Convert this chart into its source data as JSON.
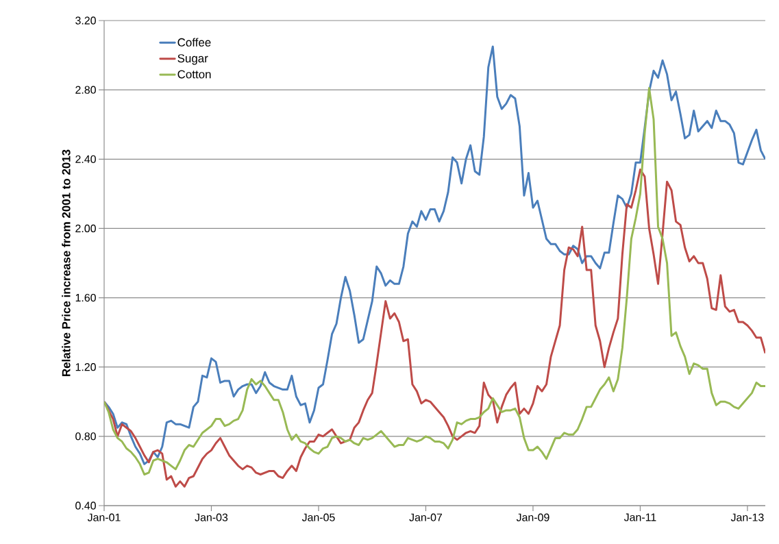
{
  "chart_data": {
    "type": "line",
    "ylabel": "Relative Price increase from 2001 to 2013",
    "x": [
      "2001-01",
      "2001-02",
      "2001-03",
      "2001-04",
      "2001-05",
      "2001-06",
      "2001-07",
      "2001-08",
      "2001-09",
      "2001-10",
      "2001-11",
      "2001-12",
      "2002-01",
      "2002-02",
      "2002-03",
      "2002-04",
      "2002-05",
      "2002-06",
      "2002-07",
      "2002-08",
      "2002-09",
      "2002-10",
      "2002-11",
      "2002-12",
      "2003-01",
      "2003-02",
      "2003-03",
      "2003-04",
      "2003-05",
      "2003-06",
      "2003-07",
      "2003-08",
      "2003-09",
      "2003-10",
      "2003-11",
      "2003-12",
      "2004-01",
      "2004-02",
      "2004-03",
      "2004-04",
      "2004-05",
      "2004-06",
      "2004-07",
      "2004-08",
      "2004-09",
      "2004-10",
      "2004-11",
      "2004-12",
      "2005-01",
      "2005-02",
      "2005-03",
      "2005-04",
      "2005-05",
      "2005-06",
      "2005-07",
      "2005-08",
      "2005-09",
      "2005-10",
      "2005-11",
      "2005-12",
      "2006-01",
      "2006-02",
      "2006-03",
      "2006-04",
      "2006-05",
      "2006-06",
      "2006-07",
      "2006-08",
      "2006-09",
      "2006-10",
      "2006-11",
      "2006-12",
      "2007-01",
      "2007-02",
      "2007-03",
      "2007-04",
      "2007-05",
      "2007-06",
      "2007-07",
      "2007-08",
      "2007-09",
      "2007-10",
      "2007-11",
      "2007-12",
      "2008-01",
      "2008-02",
      "2008-03",
      "2008-04",
      "2008-05",
      "2008-06",
      "2008-07",
      "2008-08",
      "2008-09",
      "2008-10",
      "2008-11",
      "2008-12",
      "2009-01",
      "2009-02",
      "2009-03",
      "2009-04",
      "2009-05",
      "2009-06",
      "2009-07",
      "2009-08",
      "2009-09",
      "2009-10",
      "2009-11",
      "2009-12",
      "2010-01",
      "2010-02",
      "2010-03",
      "2010-04",
      "2010-05",
      "2010-06",
      "2010-07",
      "2010-08",
      "2010-09",
      "2010-10",
      "2010-11",
      "2010-12",
      "2011-01",
      "2011-02",
      "2011-03",
      "2011-04",
      "2011-05",
      "2011-06",
      "2011-07",
      "2011-08",
      "2011-09",
      "2011-10",
      "2011-11",
      "2011-12",
      "2012-01",
      "2012-02",
      "2012-03",
      "2012-04",
      "2012-05",
      "2012-06",
      "2012-07",
      "2012-08",
      "2012-09",
      "2012-10",
      "2012-11",
      "2012-12",
      "2013-01",
      "2013-02",
      "2013-03",
      "2013-04",
      "2013-05"
    ],
    "series": [
      {
        "name": "Coffee",
        "color": "#4a7ebb",
        "values": [
          1.0,
          0.97,
          0.93,
          0.85,
          0.88,
          0.87,
          0.8,
          0.74,
          0.7,
          0.64,
          0.66,
          0.71,
          0.68,
          0.74,
          0.88,
          0.89,
          0.87,
          0.87,
          0.86,
          0.85,
          0.97,
          1.0,
          1.15,
          1.14,
          1.25,
          1.23,
          1.11,
          1.12,
          1.12,
          1.03,
          1.07,
          1.09,
          1.1,
          1.1,
          1.05,
          1.09,
          1.17,
          1.11,
          1.09,
          1.08,
          1.07,
          1.07,
          1.15,
          1.03,
          0.98,
          0.99,
          0.88,
          0.95,
          1.08,
          1.1,
          1.24,
          1.39,
          1.45,
          1.6,
          1.72,
          1.64,
          1.5,
          1.34,
          1.36,
          1.47,
          1.58,
          1.78,
          1.74,
          1.67,
          1.7,
          1.68,
          1.68,
          1.78,
          1.97,
          2.04,
          2.01,
          2.1,
          2.05,
          2.11,
          2.11,
          2.04,
          2.1,
          2.21,
          2.41,
          2.38,
          2.26,
          2.4,
          2.48,
          2.33,
          2.31,
          2.53,
          2.93,
          3.05,
          2.76,
          2.69,
          2.72,
          2.77,
          2.75,
          2.59,
          2.19,
          2.32,
          2.12,
          2.16,
          2.05,
          1.94,
          1.91,
          1.91,
          1.87,
          1.85,
          1.85,
          1.9,
          1.88,
          1.8,
          1.84,
          1.84,
          1.8,
          1.77,
          1.86,
          1.86,
          2.03,
          2.19,
          2.17,
          2.12,
          2.2,
          2.38,
          2.38,
          2.58,
          2.79,
          2.91,
          2.87,
          2.97,
          2.89,
          2.74,
          2.79,
          2.66,
          2.52,
          2.54,
          2.68,
          2.56,
          2.59,
          2.62,
          2.58,
          2.68,
          2.62,
          2.62,
          2.6,
          2.55,
          2.38,
          2.37,
          2.44,
          2.51,
          2.57,
          2.45,
          2.4
        ]
      },
      {
        "name": "Sugar",
        "color": "#be4b48",
        "values": [
          1.0,
          0.95,
          0.9,
          0.8,
          0.87,
          0.85,
          0.83,
          0.79,
          0.74,
          0.69,
          0.65,
          0.71,
          0.72,
          0.7,
          0.55,
          0.57,
          0.51,
          0.54,
          0.51,
          0.56,
          0.57,
          0.62,
          0.67,
          0.7,
          0.72,
          0.76,
          0.79,
          0.74,
          0.69,
          0.66,
          0.63,
          0.61,
          0.63,
          0.62,
          0.59,
          0.58,
          0.59,
          0.6,
          0.6,
          0.57,
          0.56,
          0.6,
          0.63,
          0.6,
          0.68,
          0.73,
          0.77,
          0.77,
          0.81,
          0.8,
          0.82,
          0.84,
          0.8,
          0.76,
          0.77,
          0.78,
          0.85,
          0.88,
          0.95,
          1.01,
          1.05,
          1.22,
          1.4,
          1.58,
          1.48,
          1.51,
          1.46,
          1.35,
          1.36,
          1.1,
          1.06,
          0.99,
          1.01,
          1.0,
          0.97,
          0.94,
          0.91,
          0.86,
          0.8,
          0.78,
          0.8,
          0.82,
          0.83,
          0.82,
          0.86,
          1.11,
          1.04,
          1.01,
          0.88,
          0.97,
          1.04,
          1.08,
          1.11,
          0.93,
          0.96,
          0.93,
          0.99,
          1.09,
          1.06,
          1.1,
          1.26,
          1.35,
          1.44,
          1.76,
          1.89,
          1.88,
          1.84,
          2.01,
          1.76,
          1.76,
          1.44,
          1.35,
          1.2,
          1.31,
          1.4,
          1.48,
          1.85,
          2.14,
          2.12,
          2.22,
          2.34,
          2.3,
          2.0,
          1.85,
          1.68,
          1.97,
          2.27,
          2.22,
          2.04,
          2.02,
          1.89,
          1.81,
          1.84,
          1.8,
          1.8,
          1.71,
          1.54,
          1.53,
          1.73,
          1.55,
          1.52,
          1.53,
          1.46,
          1.46,
          1.44,
          1.41,
          1.37,
          1.37,
          1.28
        ]
      },
      {
        "name": "Cotton",
        "color": "#98b954",
        "values": [
          1.0,
          0.94,
          0.84,
          0.79,
          0.77,
          0.73,
          0.71,
          0.68,
          0.64,
          0.58,
          0.59,
          0.66,
          0.67,
          0.66,
          0.65,
          0.63,
          0.61,
          0.66,
          0.72,
          0.75,
          0.74,
          0.78,
          0.82,
          0.84,
          0.86,
          0.9,
          0.9,
          0.86,
          0.87,
          0.89,
          0.9,
          0.95,
          1.07,
          1.13,
          1.1,
          1.12,
          1.09,
          1.05,
          1.01,
          1.01,
          0.94,
          0.84,
          0.78,
          0.81,
          0.77,
          0.76,
          0.73,
          0.71,
          0.7,
          0.73,
          0.74,
          0.79,
          0.8,
          0.79,
          0.77,
          0.78,
          0.76,
          0.75,
          0.79,
          0.78,
          0.79,
          0.81,
          0.83,
          0.8,
          0.77,
          0.74,
          0.75,
          0.75,
          0.79,
          0.78,
          0.77,
          0.78,
          0.8,
          0.79,
          0.77,
          0.77,
          0.76,
          0.73,
          0.78,
          0.88,
          0.87,
          0.89,
          0.9,
          0.9,
          0.91,
          0.94,
          0.96,
          1.02,
          0.98,
          0.94,
          0.95,
          0.95,
          0.96,
          0.91,
          0.79,
          0.72,
          0.72,
          0.74,
          0.71,
          0.67,
          0.73,
          0.79,
          0.79,
          0.82,
          0.81,
          0.81,
          0.84,
          0.9,
          0.97,
          0.97,
          1.02,
          1.07,
          1.1,
          1.14,
          1.06,
          1.13,
          1.31,
          1.6,
          1.94,
          2.06,
          2.2,
          2.55,
          2.81,
          2.63,
          2.01,
          1.94,
          1.8,
          1.38,
          1.4,
          1.32,
          1.26,
          1.16,
          1.22,
          1.21,
          1.19,
          1.19,
          1.05,
          0.98,
          1.0,
          1.0,
          0.99,
          0.97,
          0.96,
          0.99,
          1.02,
          1.05,
          1.11,
          1.09,
          1.09
        ]
      }
    ],
    "xlim": [
      "2001-01",
      "2013-05"
    ],
    "xticks": [
      {
        "value": "2001-01",
        "label": "Jan-01"
      },
      {
        "value": "2003-01",
        "label": "Jan-03"
      },
      {
        "value": "2005-01",
        "label": "Jan-05"
      },
      {
        "value": "2007-01",
        "label": "Jan-07"
      },
      {
        "value": "2009-01",
        "label": "Jan-09"
      },
      {
        "value": "2011-01",
        "label": "Jan-11"
      },
      {
        "value": "2013-01",
        "label": "Jan-13"
      }
    ],
    "ylim": [
      0.4,
      3.2
    ],
    "yticks": [
      {
        "value": 0.4,
        "label": "0.40"
      },
      {
        "value": 0.8,
        "label": "0.80"
      },
      {
        "value": 1.2,
        "label": "1.20"
      },
      {
        "value": 1.6,
        "label": "1.60"
      },
      {
        "value": 2.0,
        "label": "2.00"
      },
      {
        "value": 2.4,
        "label": "2.40"
      },
      {
        "value": 2.8,
        "label": "2.80"
      },
      {
        "value": 3.2,
        "label": "3.20"
      }
    ],
    "grid": "y",
    "legend": "top left",
    "marker": "none",
    "line_style": "solid"
  }
}
